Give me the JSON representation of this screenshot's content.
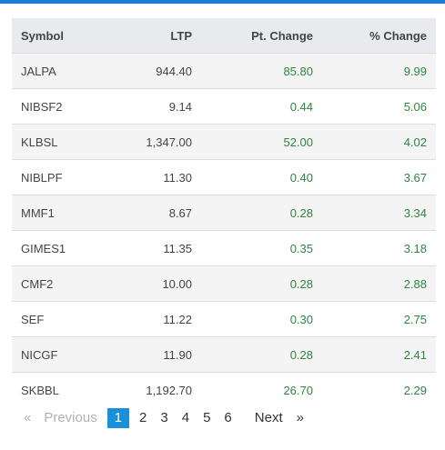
{
  "table": {
    "headers": {
      "symbol": "Symbol",
      "ltp": "LTP",
      "pt_change": "Pt. Change",
      "pct_change": "% Change"
    },
    "rows": [
      {
        "symbol": "JALPA",
        "ltp": "944.40",
        "pt": "85.80",
        "pct": "9.99"
      },
      {
        "symbol": "NIBSF2",
        "ltp": "9.14",
        "pt": "0.44",
        "pct": "5.06"
      },
      {
        "symbol": "KLBSL",
        "ltp": "1,347.00",
        "pt": "52.00",
        "pct": "4.02"
      },
      {
        "symbol": "NIBLPF",
        "ltp": "11.30",
        "pt": "0.40",
        "pct": "3.67"
      },
      {
        "symbol": "MMF1",
        "ltp": "8.67",
        "pt": "0.28",
        "pct": "3.34"
      },
      {
        "symbol": "GIMES1",
        "ltp": "11.35",
        "pt": "0.35",
        "pct": "3.18"
      },
      {
        "symbol": "CMF2",
        "ltp": "10.00",
        "pt": "0.28",
        "pct": "2.88"
      },
      {
        "symbol": "SEF",
        "ltp": "11.22",
        "pt": "0.30",
        "pct": "2.75"
      },
      {
        "symbol": "NICGF",
        "ltp": "11.90",
        "pt": "0.28",
        "pct": "2.41"
      },
      {
        "symbol": "SKBBL",
        "ltp": "1,192.70",
        "pt": "26.70",
        "pct": "2.29"
      }
    ]
  },
  "pagination": {
    "prev_arrow": "«",
    "prev_label": "Previous",
    "pages": [
      "1",
      "2",
      "3",
      "4",
      "5",
      "6"
    ],
    "active_page": "1",
    "next_label": "Next",
    "next_arrow": "»"
  },
  "colors": {
    "accent": "#1a7fd4",
    "positive": "#2e8540"
  }
}
